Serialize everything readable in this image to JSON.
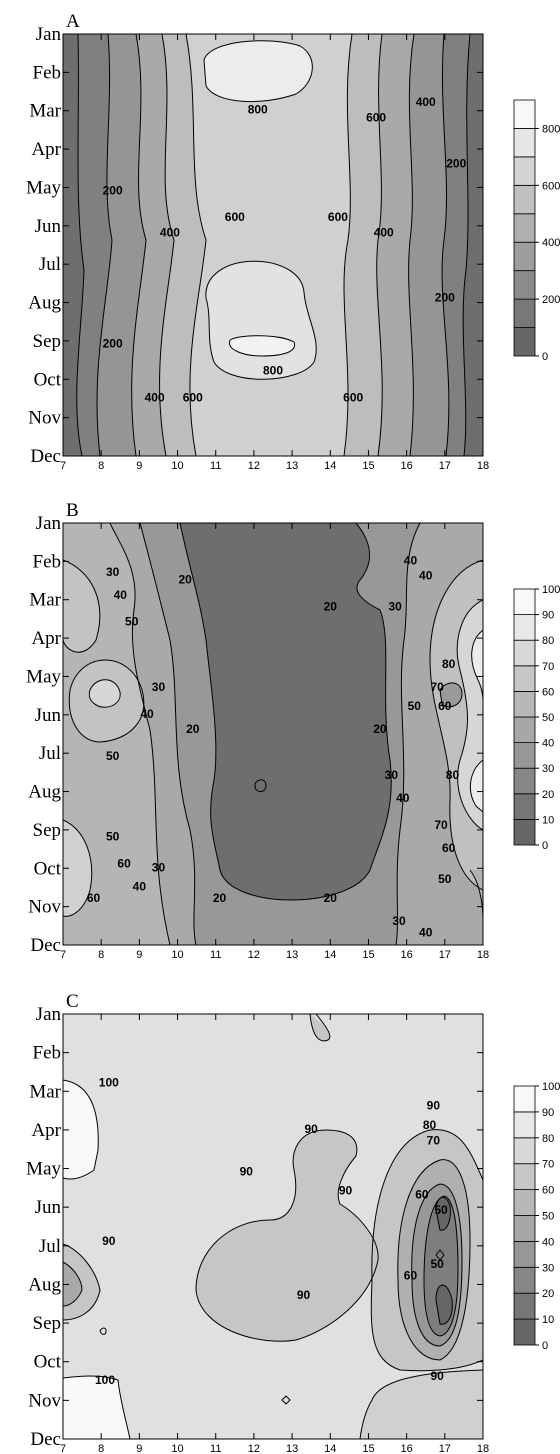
{
  "chart_data": [
    {
      "type": "heatmap",
      "panel_label": "A",
      "x_ticks": [
        7,
        8,
        9,
        10,
        11,
        12,
        13,
        14,
        15,
        16,
        17,
        18
      ],
      "y_categories": [
        "Jan",
        "Feb",
        "Mar",
        "Apr",
        "May",
        "Jun",
        "Jul",
        "Aug",
        "Sep",
        "Oct",
        "Nov",
        "Dec"
      ],
      "colorbar_ticks": [
        0,
        200,
        400,
        600,
        800
      ],
      "colorbar_levels": [
        0,
        100,
        200,
        300,
        400,
        500,
        600,
        700,
        800,
        900
      ],
      "contour_labels": [
        {
          "text": "800",
          "x": 12.1,
          "y": 2.0
        },
        {
          "text": "600",
          "x": 15.2,
          "y": 2.2
        },
        {
          "text": "400",
          "x": 16.5,
          "y": 1.8
        },
        {
          "text": "200",
          "x": 17.3,
          "y": 3.4
        },
        {
          "text": "200",
          "x": 8.3,
          "y": 4.1
        },
        {
          "text": "600",
          "x": 11.5,
          "y": 4.8
        },
        {
          "text": "600",
          "x": 14.2,
          "y": 4.8
        },
        {
          "text": "400",
          "x": 9.8,
          "y": 5.2
        },
        {
          "text": "400",
          "x": 15.4,
          "y": 5.2
        },
        {
          "text": "200",
          "x": 17.0,
          "y": 6.9
        },
        {
          "text": "200",
          "x": 8.3,
          "y": 8.1
        },
        {
          "text": "800",
          "x": 12.5,
          "y": 8.8
        },
        {
          "text": "400",
          "x": 9.4,
          "y": 9.5
        },
        {
          "text": "600",
          "x": 10.4,
          "y": 9.5
        },
        {
          "text": "600",
          "x": 14.6,
          "y": 9.5
        }
      ]
    },
    {
      "type": "heatmap",
      "panel_label": "B",
      "x_ticks": [
        7,
        8,
        9,
        10,
        11,
        12,
        13,
        14,
        15,
        16,
        17,
        18
      ],
      "y_categories": [
        "Jan",
        "Feb",
        "Mar",
        "Apr",
        "May",
        "Jun",
        "Jul",
        "Aug",
        "Sep",
        "Oct",
        "Nov",
        "Dec"
      ],
      "colorbar_ticks": [
        0,
        10,
        20,
        30,
        40,
        50,
        60,
        70,
        80,
        90,
        100
      ],
      "contour_labels": [
        {
          "text": "30",
          "x": 8.3,
          "y": 1.3
        },
        {
          "text": "40",
          "x": 8.5,
          "y": 1.9
        },
        {
          "text": "50",
          "x": 8.8,
          "y": 2.6
        },
        {
          "text": "20",
          "x": 10.2,
          "y": 1.5
        },
        {
          "text": "20",
          "x": 14.0,
          "y": 2.2
        },
        {
          "text": "30",
          "x": 15.7,
          "y": 2.2
        },
        {
          "text": "40",
          "x": 16.1,
          "y": 1.0
        },
        {
          "text": "40",
          "x": 16.5,
          "y": 1.4
        },
        {
          "text": "80",
          "x": 17.1,
          "y": 3.7
        },
        {
          "text": "70",
          "x": 16.8,
          "y": 4.3
        },
        {
          "text": "60",
          "x": 17.0,
          "y": 4.8
        },
        {
          "text": "50",
          "x": 16.2,
          "y": 4.8
        },
        {
          "text": "30",
          "x": 9.5,
          "y": 4.3
        },
        {
          "text": "40",
          "x": 9.2,
          "y": 5.0
        },
        {
          "text": "20",
          "x": 10.4,
          "y": 5.4
        },
        {
          "text": "50",
          "x": 8.3,
          "y": 6.1
        },
        {
          "text": "20",
          "x": 15.3,
          "y": 5.4
        },
        {
          "text": "30",
          "x": 15.6,
          "y": 6.6
        },
        {
          "text": "40",
          "x": 15.9,
          "y": 7.2
        },
        {
          "text": "80",
          "x": 17.2,
          "y": 6.6
        },
        {
          "text": "70",
          "x": 16.9,
          "y": 7.9
        },
        {
          "text": "60",
          "x": 17.1,
          "y": 8.5
        },
        {
          "text": "50",
          "x": 17.0,
          "y": 9.3
        },
        {
          "text": "50",
          "x": 8.3,
          "y": 8.2
        },
        {
          "text": "60",
          "x": 8.6,
          "y": 8.9
        },
        {
          "text": "30",
          "x": 9.5,
          "y": 9.0
        },
        {
          "text": "40",
          "x": 9.0,
          "y": 9.5
        },
        {
          "text": "60",
          "x": 7.8,
          "y": 9.8
        },
        {
          "text": "20",
          "x": 11.1,
          "y": 9.8
        },
        {
          "text": "20",
          "x": 14.0,
          "y": 9.8
        },
        {
          "text": "30",
          "x": 15.8,
          "y": 10.4
        },
        {
          "text": "40",
          "x": 16.5,
          "y": 10.7
        }
      ]
    },
    {
      "type": "heatmap",
      "panel_label": "C",
      "x_ticks": [
        7,
        8,
        9,
        10,
        11,
        12,
        13,
        14,
        15,
        16,
        17,
        18
      ],
      "y_categories": [
        "Jan",
        "Feb",
        "Mar",
        "Apr",
        "May",
        "Jun",
        "Jul",
        "Aug",
        "Sep",
        "Oct",
        "Nov",
        "Dec"
      ],
      "colorbar_ticks": [
        0,
        10,
        20,
        30,
        40,
        50,
        60,
        70,
        80,
        90,
        100
      ],
      "contour_labels": [
        {
          "text": "100",
          "x": 8.2,
          "y": 1.8
        },
        {
          "text": "90",
          "x": 13.5,
          "y": 3.0
        },
        {
          "text": "90",
          "x": 11.8,
          "y": 4.1
        },
        {
          "text": "90",
          "x": 14.4,
          "y": 4.6
        },
        {
          "text": "90",
          "x": 8.2,
          "y": 5.9
        },
        {
          "text": "90",
          "x": 13.3,
          "y": 7.3
        },
        {
          "text": "90",
          "x": 16.7,
          "y": 2.4
        },
        {
          "text": "80",
          "x": 16.6,
          "y": 2.9
        },
        {
          "text": "70",
          "x": 16.7,
          "y": 3.3
        },
        {
          "text": "60",
          "x": 16.4,
          "y": 4.7
        },
        {
          "text": "50",
          "x": 16.9,
          "y": 5.1
        },
        {
          "text": "50",
          "x": 16.8,
          "y": 6.5
        },
        {
          "text": "60",
          "x": 16.1,
          "y": 6.8
        },
        {
          "text": "100",
          "x": 8.1,
          "y": 9.5
        },
        {
          "text": "90",
          "x": 16.8,
          "y": 9.4
        }
      ]
    }
  ]
}
